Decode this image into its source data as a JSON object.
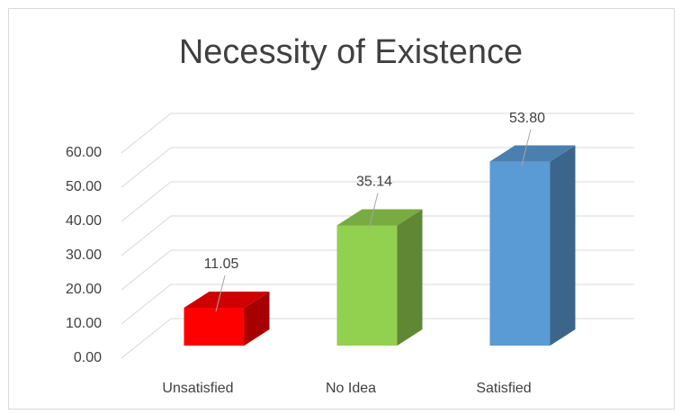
{
  "chart_data": {
    "type": "bar3d",
    "title": "Necessity of Existence",
    "categories": [
      "Unsatisfied",
      "No Idea",
      "Satisfied"
    ],
    "values": [
      11.05,
      35.14,
      53.8
    ],
    "value_labels": [
      "11.05",
      "35.14",
      "53.80"
    ],
    "colors": [
      "#ff0000",
      "#92d050",
      "#5b9bd5"
    ],
    "ylim": [
      0,
      60
    ],
    "yticks": [
      {
        "value": 0,
        "label": "0.00"
      },
      {
        "value": 10,
        "label": "10.00"
      },
      {
        "value": 20,
        "label": "20.00"
      },
      {
        "value": 30,
        "label": "30.00"
      },
      {
        "value": 40,
        "label": "40.00"
      },
      {
        "value": 50,
        "label": "50.00"
      },
      {
        "value": 60,
        "label": "60.00"
      }
    ],
    "grid": true
  }
}
